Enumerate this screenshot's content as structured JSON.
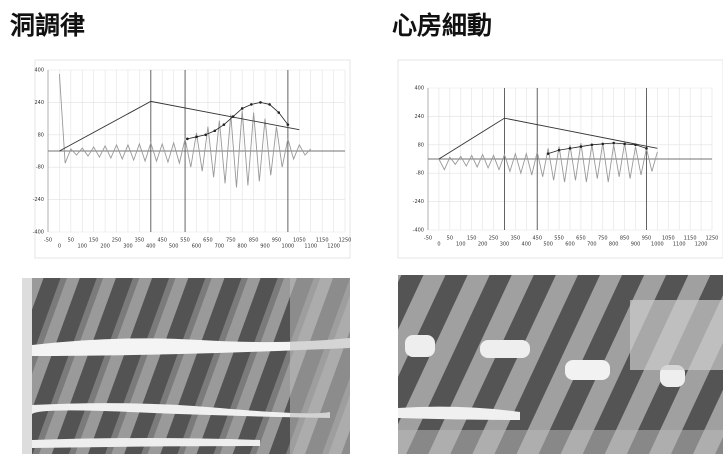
{
  "chart_data": [
    {
      "type": "line",
      "title": "洞調律",
      "xlim": [
        -50,
        1250
      ],
      "ylim": [
        -400,
        400
      ],
      "xticks": [
        -50,
        0,
        50,
        100,
        150,
        200,
        250,
        300,
        350,
        400,
        450,
        500,
        550,
        600,
        650,
        700,
        750,
        800,
        850,
        900,
        950,
        1000,
        1050,
        1100,
        1150,
        1200,
        1250
      ],
      "yticks": [
        400,
        240,
        80,
        -80,
        -240,
        -400
      ],
      "grid": true,
      "vlines": [
        400,
        550,
        1000
      ],
      "series": [
        {
          "color": "#999999",
          "x": [
            0,
            25,
            50,
            75,
            100,
            125,
            150,
            175,
            200,
            225,
            250,
            275,
            300,
            325,
            350,
            375,
            400,
            425,
            450,
            475,
            500,
            525,
            550,
            575,
            600,
            625,
            650,
            675,
            700,
            725,
            750,
            775,
            800,
            825,
            850,
            875,
            900,
            925,
            950,
            975,
            1000,
            1025,
            1050,
            1075,
            1100
          ],
          "values": [
            380,
            -60,
            10,
            -20,
            15,
            -25,
            20,
            -30,
            25,
            -35,
            30,
            -40,
            30,
            -45,
            35,
            -50,
            40,
            -50,
            35,
            -55,
            40,
            -60,
            60,
            -80,
            90,
            -100,
            120,
            -130,
            150,
            -160,
            180,
            -180,
            200,
            -170,
            190,
            -150,
            160,
            -120,
            120,
            -80,
            60,
            -40,
            30,
            -20,
            10
          ]
        },
        {
          "color": "#333333",
          "x": [
            0,
            400,
            1050
          ],
          "values": [
            0,
            245,
            105
          ]
        },
        {
          "color": "#222222",
          "markers": true,
          "x": [
            560,
            600,
            640,
            680,
            720,
            760,
            800,
            840,
            880,
            920,
            960,
            1000
          ],
          "values": [
            60,
            70,
            80,
            100,
            130,
            170,
            210,
            230,
            240,
            230,
            190,
            130
          ]
        }
      ]
    },
    {
      "type": "line",
      "title": "心房細動",
      "xlim": [
        -50,
        1250
      ],
      "ylim": [
        -400,
        400
      ],
      "xticks": [
        -50,
        0,
        50,
        100,
        150,
        200,
        250,
        300,
        350,
        400,
        450,
        500,
        550,
        600,
        650,
        700,
        750,
        800,
        850,
        900,
        950,
        1000,
        1050,
        1100,
        1150,
        1200,
        1250
      ],
      "yticks": [
        400,
        240,
        80,
        -80,
        -240,
        -400
      ],
      "grid": true,
      "vlines": [
        300,
        450,
        950
      ],
      "series": [
        {
          "color": "#999999",
          "x": [
            0,
            25,
            50,
            75,
            100,
            125,
            150,
            175,
            200,
            225,
            250,
            275,
            300,
            325,
            350,
            375,
            400,
            425,
            450,
            475,
            500,
            525,
            550,
            575,
            600,
            625,
            650,
            675,
            700,
            725,
            750,
            775,
            800,
            825,
            850,
            875,
            900,
            925,
            950,
            975,
            1000
          ],
          "values": [
            0,
            -60,
            10,
            -30,
            15,
            -40,
            20,
            -45,
            25,
            -50,
            20,
            -60,
            25,
            -70,
            30,
            -80,
            30,
            -90,
            40,
            -100,
            60,
            -120,
            70,
            -130,
            80,
            -120,
            90,
            -130,
            80,
            -110,
            90,
            -130,
            80,
            -100,
            90,
            -110,
            70,
            -90,
            60,
            -70,
            40
          ]
        },
        {
          "color": "#333333",
          "x": [
            0,
            300,
            1000
          ],
          "values": [
            0,
            230,
            60
          ]
        },
        {
          "color": "#222222",
          "markers": true,
          "x": [
            500,
            550,
            600,
            650,
            700,
            750,
            800,
            850,
            900,
            950
          ],
          "values": [
            30,
            50,
            60,
            70,
            80,
            85,
            90,
            85,
            80,
            60
          ]
        }
      ]
    }
  ]
}
